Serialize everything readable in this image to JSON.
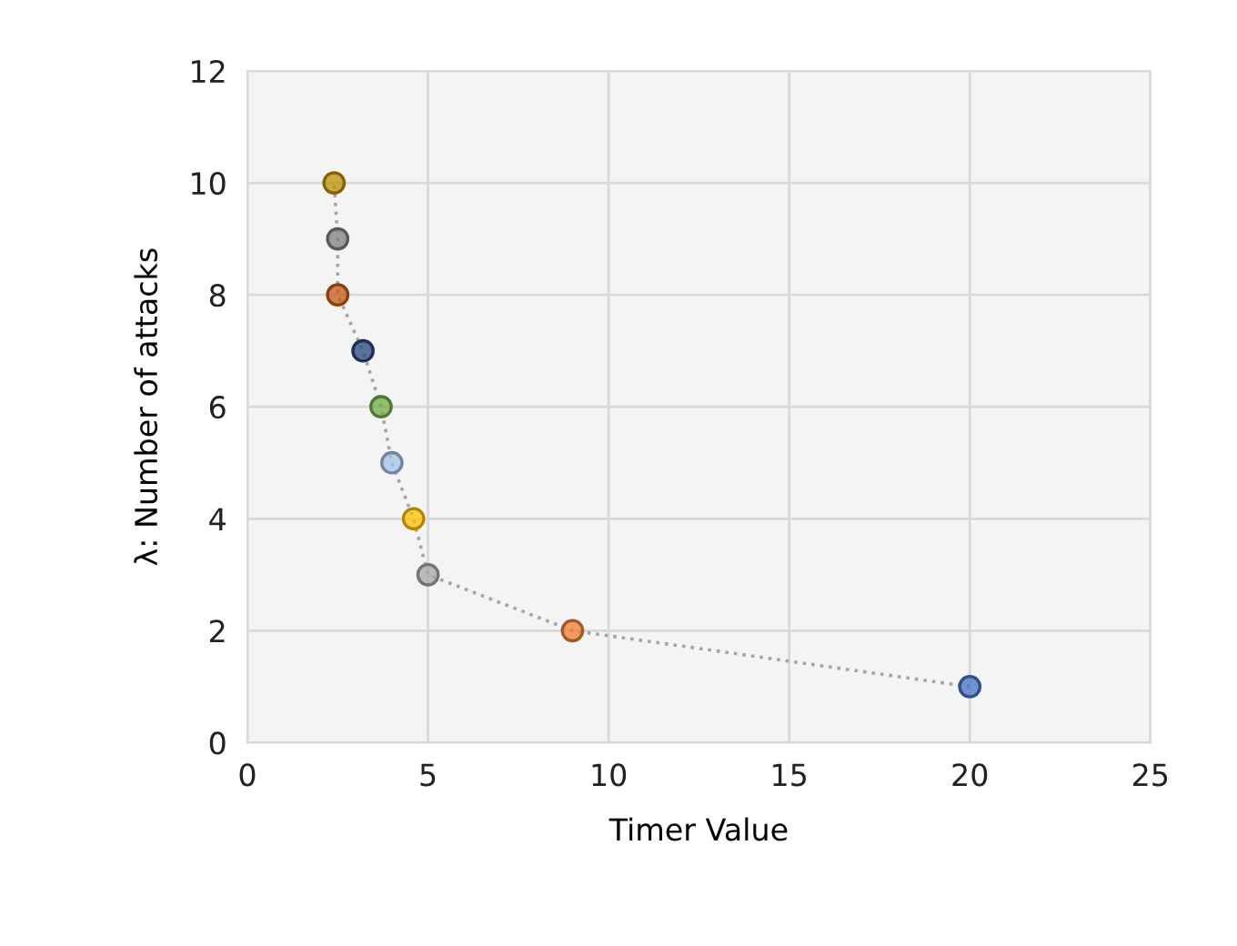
{
  "chart_data": {
    "type": "line",
    "xlabel": "Timer Value",
    "ylabel": "λ: Number of attacks",
    "x": [
      20,
      9,
      5,
      4.6,
      4,
      3.7,
      3.2,
      2.5,
      2.5,
      2.4
    ],
    "values": [
      1,
      2,
      3,
      4,
      5,
      6,
      7,
      8,
      9,
      10
    ],
    "colors": [
      "#4472c4",
      "#ed7d31",
      "#a5a5a5",
      "#ffc000",
      "#9dc3e6",
      "#70ad47",
      "#264478",
      "#c55a11",
      "#7f7f7f",
      "#bf9000"
    ],
    "color": "#a5a5a5",
    "xlim": [
      0,
      25
    ],
    "xticks": [
      0,
      5,
      10,
      15,
      20,
      25
    ],
    "ylim": [
      0,
      12
    ],
    "yticks": [
      0,
      2,
      4,
      6,
      8,
      10,
      12
    ],
    "grid": true,
    "marker": "circle",
    "line_style": "dotted"
  }
}
